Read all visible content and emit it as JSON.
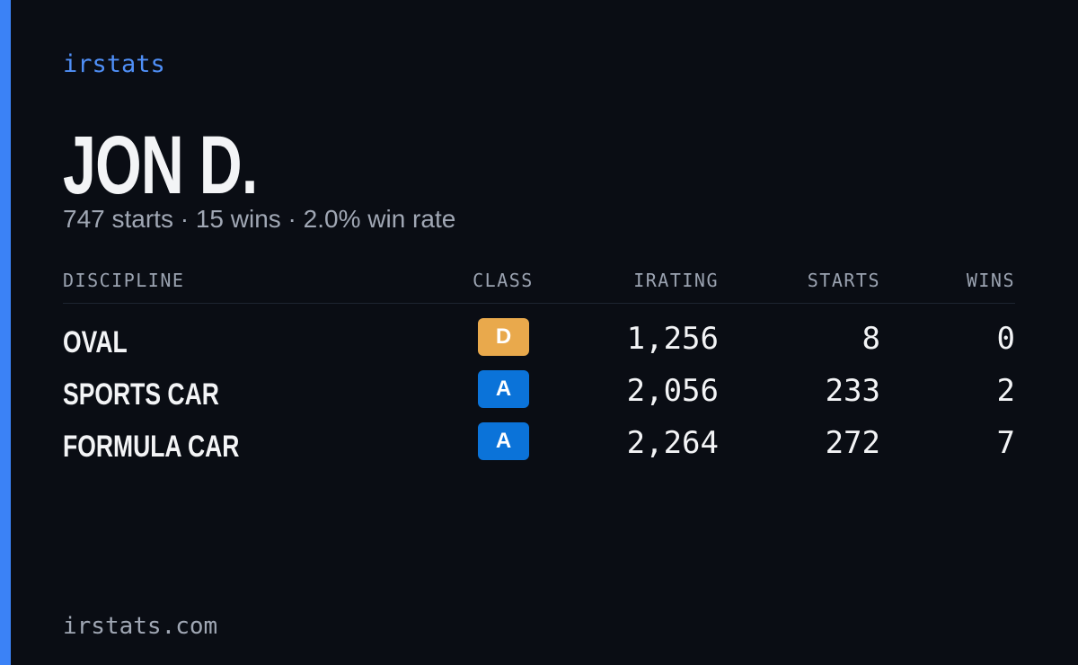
{
  "brand": "irstats",
  "profile": {
    "name": "JON D.",
    "summary": "747 starts · 15 wins · 2.0% win rate"
  },
  "table": {
    "columns": [
      "DISCIPLINE",
      "CLASS",
      "IRATING",
      "STARTS",
      "WINS"
    ],
    "rows": [
      [
        "OVAL",
        "D",
        "1,256",
        "8",
        "0"
      ],
      [
        "SPORTS CAR",
        "A",
        "2,056",
        "233",
        "2"
      ],
      [
        "FORMULA CAR",
        "A",
        "2,264",
        "272",
        "7"
      ]
    ]
  },
  "badge_colors": {
    "D": "#e9a94c",
    "A": "#0b73d9"
  },
  "footer": "irstats.com"
}
